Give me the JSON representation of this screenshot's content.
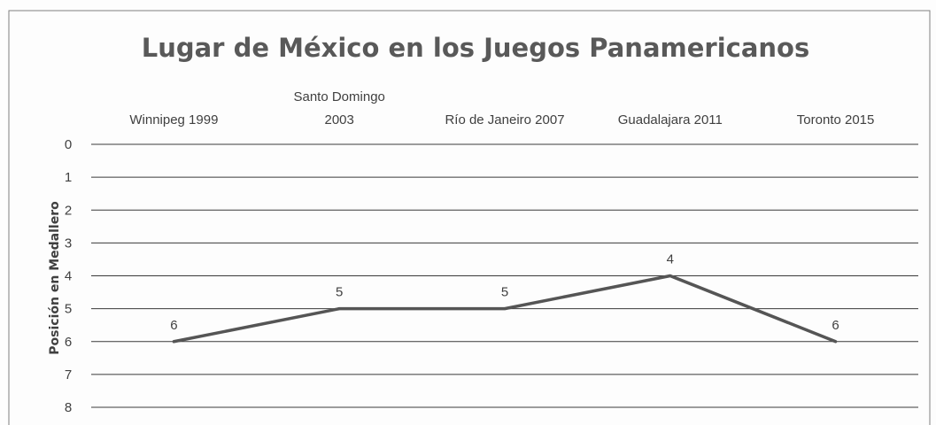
{
  "chart_data": {
    "type": "line",
    "title": "Lugar de México en los Juegos Panamericanos",
    "ylabel": "Posición en Medallero",
    "xlabel": "",
    "categories": [
      [
        "Winnipeg 1999"
      ],
      [
        "Santo Domingo",
        "2003"
      ],
      [
        "Río de Janeiro 2007"
      ],
      [
        "Guadalajara 2011"
      ],
      [
        "Toronto 2015"
      ]
    ],
    "values": [
      6,
      5,
      5,
      4,
      6
    ],
    "data_labels": [
      "6",
      "5",
      "5",
      "4",
      "6"
    ],
    "ylim": [
      0,
      8
    ],
    "y_reversed": true,
    "yticks": [
      0,
      1,
      2,
      3,
      4,
      5,
      6,
      7,
      8
    ],
    "x_axis_position": "top",
    "grid": true,
    "legend": "none",
    "colors": {
      "line": "#555555",
      "grid": "#3a3a3a",
      "text": "#404040",
      "title": "#595959",
      "border": "#7f7f7f"
    }
  }
}
